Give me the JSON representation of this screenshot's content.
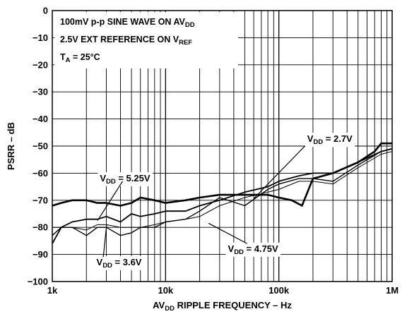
{
  "chart_data": {
    "type": "line",
    "xscale": "log",
    "xlim": [
      1000,
      1000000
    ],
    "ylim": [
      -100,
      0
    ],
    "xlabel": "AV_DD RIPPLE FREQUENCY – Hz",
    "ylabel": "PSRR – dB",
    "grid": true,
    "x_ticks": [
      {
        "value": 1000,
        "label": "1k"
      },
      {
        "value": 10000,
        "label": "10k"
      },
      {
        "value": 100000,
        "label": "100k"
      },
      {
        "value": 1000000,
        "label": "1M"
      }
    ],
    "y_ticks": [
      0,
      -10,
      -20,
      -30,
      -40,
      -50,
      -60,
      -70,
      -80,
      -90,
      -100
    ],
    "annotations": [
      {
        "main": "100mV p-p SINE WAVE ON AV",
        "sub": "DD",
        "rest": ""
      },
      {
        "main": "2.5V EXT REFERENCE ON V",
        "sub": "REF",
        "rest": ""
      },
      {
        "main": "T",
        "sub": "A",
        "rest": " = 25°C"
      }
    ],
    "series": [
      {
        "name": "V_DD = 2.7V",
        "label_main": "V",
        "label_sub": "DD",
        "label_rest": " = 2.7V",
        "stroke_width": 2.6,
        "x": [
          1000,
          1200,
          1500,
          2000,
          2500,
          3000,
          4000,
          5000,
          6000,
          8000,
          10000,
          15000,
          20000,
          30000,
          50000,
          80000,
          100000,
          130000,
          160000,
          200000,
          300000,
          500000,
          700000,
          800000,
          1000000
        ],
        "y": [
          -72,
          -71,
          -70,
          -70,
          -71,
          -71,
          -72,
          -71,
          -69,
          -70,
          -71,
          -70,
          -69,
          -68,
          -68,
          -68,
          -69,
          -70,
          -72,
          -62,
          -60,
          -56,
          -52,
          -49,
          -49
        ]
      },
      {
        "name": "V_DD = 5.25V",
        "label_main": "V",
        "label_sub": "DD",
        "label_rest": " = 5.25V",
        "stroke_width": 1.8,
        "x": [
          1000,
          1200,
          1500,
          2000,
          2500,
          3000,
          4000,
          5000,
          6000,
          8000,
          10000,
          15000,
          20000,
          30000,
          50000,
          80000,
          100000,
          150000,
          200000,
          300000,
          500000,
          800000,
          1000000
        ],
        "y": [
          -86,
          -80,
          -78,
          -77,
          -77,
          -76,
          -78,
          -75,
          -76,
          -75,
          -74,
          -74,
          -72,
          -70,
          -67,
          -65,
          -63,
          -61,
          -60,
          -60,
          -56,
          -52,
          -51
        ]
      },
      {
        "name": "V_DD = 3.6V",
        "label_main": "V",
        "label_sub": "DD",
        "label_rest": " = 3.6V",
        "stroke_width": 1.4,
        "x": [
          1000,
          1200,
          1500,
          2000,
          2500,
          3000,
          4000,
          5000,
          6000,
          8000,
          10000,
          15000,
          20000,
          30000,
          50000,
          80000,
          100000,
          150000,
          200000,
          300000,
          500000,
          800000,
          1000000
        ],
        "y": [
          -83,
          -80,
          -80,
          -83,
          -80,
          -80,
          -83,
          -82,
          -80,
          -80,
          -78,
          -77,
          -74,
          -69,
          -72,
          -66,
          -64,
          -62,
          -62,
          -63,
          -57,
          -52,
          -51
        ]
      },
      {
        "name": "V_DD = 4.75V",
        "label_main": "V",
        "label_sub": "DD",
        "label_rest": " = 4.75V",
        "stroke_width": 1.0,
        "x": [
          1000,
          1500,
          2000,
          2500,
          3000,
          4000,
          5000,
          6000,
          8000,
          10000,
          15000,
          20000,
          30000,
          50000,
          80000,
          100000,
          150000,
          200000,
          300000,
          500000,
          800000,
          1000000
        ],
        "y": [
          -80,
          -80,
          -81,
          -79,
          -79,
          -80,
          -80,
          -80,
          -79,
          -78,
          -77,
          -76,
          -72,
          -69,
          -67,
          -66,
          -63,
          -63,
          -64,
          -58,
          -53,
          -52
        ]
      }
    ],
    "callouts": [
      {
        "series": 0,
        "text_x": 2.25,
        "text_y": -48.5,
        "anchor": "start",
        "from_x": 2.23,
        "from_y": -50,
        "to_x": 1.78,
        "to_y": -69.3
      },
      {
        "series": 1,
        "text_x": 0.42,
        "text_y": -63,
        "anchor": "start",
        "from_x": 0.62,
        "from_y": -63,
        "to_x": 0.4,
        "to_y": -77.5
      },
      {
        "series": 2,
        "text_x": 0.39,
        "text_y": -94,
        "anchor": "start",
        "from_x": 0.45,
        "from_y": -91,
        "to_x": 0.48,
        "to_y": -79
      },
      {
        "series": 3,
        "text_x": 1.55,
        "text_y": -89,
        "anchor": "start",
        "from_x": 1.72,
        "from_y": -86,
        "to_x": 1.38,
        "to_y": -78.5
      }
    ]
  }
}
